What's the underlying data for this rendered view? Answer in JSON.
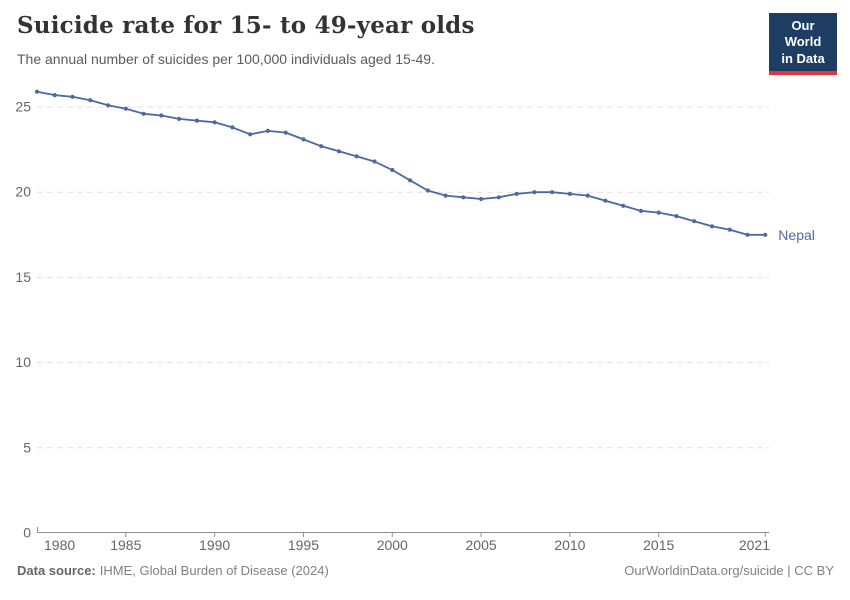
{
  "header": {
    "title": "Suicide rate for 15- to 49-year olds",
    "subtitle": "The annual number of suicides per 100,000 individuals aged 15-49."
  },
  "logo": {
    "line1": "Our World",
    "line2": "in Data"
  },
  "colors": {
    "series_blue": "#4C6A9C",
    "logo_bg": "#1d3d63",
    "logo_accent": "#e0373c",
    "grid": "#e0e0e0",
    "axis": "#8f8f8f",
    "tick_label": "#666666"
  },
  "chart_data": {
    "type": "line",
    "title": "Suicide rate for 15- to 49-year olds",
    "xlabel": "",
    "ylabel": "Suicides per 100,000 individuals aged 15-49",
    "grid": "horizontal-dashed",
    "legend_position": "end-of-line-label",
    "ylim": [
      0,
      26.5
    ],
    "x_ticks": [
      1980,
      1985,
      1990,
      1995,
      2000,
      2005,
      2010,
      2015,
      2021
    ],
    "y_ticks": [
      0,
      5,
      10,
      15,
      20,
      25
    ],
    "series": [
      {
        "name": "Nepal",
        "color": "#4C6A9C",
        "years": [
          1980,
          1981,
          1982,
          1983,
          1984,
          1985,
          1986,
          1987,
          1988,
          1989,
          1990,
          1991,
          1992,
          1993,
          1994,
          1995,
          1996,
          1997,
          1998,
          1999,
          2000,
          2001,
          2002,
          2003,
          2004,
          2005,
          2006,
          2007,
          2008,
          2009,
          2010,
          2011,
          2012,
          2013,
          2014,
          2015,
          2016,
          2017,
          2018,
          2019,
          2020,
          2021
        ],
        "values": [
          25.9,
          25.7,
          25.6,
          25.4,
          25.1,
          24.9,
          24.6,
          24.5,
          24.3,
          24.2,
          24.1,
          23.8,
          23.4,
          23.6,
          23.5,
          23.1,
          22.7,
          22.4,
          22.1,
          21.8,
          21.3,
          20.7,
          20.1,
          19.8,
          19.7,
          19.6,
          19.7,
          19.9,
          20.0,
          20.0,
          19.9,
          19.8,
          19.5,
          19.2,
          18.9,
          18.8,
          18.6,
          18.3,
          18.0,
          17.8,
          17.5,
          17.5
        ]
      }
    ]
  },
  "footer": {
    "source_label": "Data source:",
    "source_text": "IHME, Global Burden of Disease (2024)",
    "credit": "OurWorldinData.org/suicide | CC BY"
  }
}
